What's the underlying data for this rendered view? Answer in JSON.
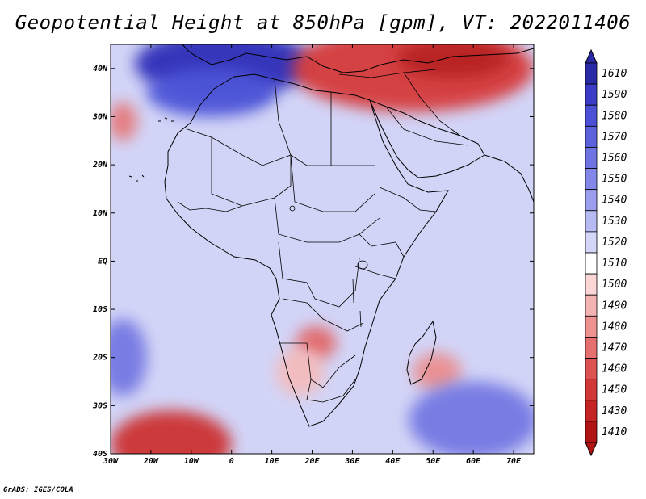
{
  "title": "Geopotential Height at 850hPa [gpm], VT: 2022011406",
  "credit": "GrADS: IGES/COLA",
  "map": {
    "region": "Africa",
    "lon_range": [
      -30,
      75
    ],
    "lat_range": [
      -40,
      45
    ],
    "lat_labels": [
      {
        "lat": 40,
        "text": "40N"
      },
      {
        "lat": 30,
        "text": "30N"
      },
      {
        "lat": 20,
        "text": "20N"
      },
      {
        "lat": 10,
        "text": "10N"
      },
      {
        "lat": 0,
        "text": "EQ"
      },
      {
        "lat": -10,
        "text": "10S"
      },
      {
        "lat": -20,
        "text": "20S"
      },
      {
        "lat": -30,
        "text": "30S"
      },
      {
        "lat": -40,
        "text": "40S"
      }
    ],
    "lon_labels": [
      {
        "lon": -30,
        "text": "30W"
      },
      {
        "lon": -20,
        "text": "20W"
      },
      {
        "lon": -10,
        "text": "10W"
      },
      {
        "lon": 0,
        "text": "0"
      },
      {
        "lon": 10,
        "text": "10E"
      },
      {
        "lon": 20,
        "text": "20E"
      },
      {
        "lon": 30,
        "text": "30E"
      },
      {
        "lon": 40,
        "text": "40E"
      },
      {
        "lon": 50,
        "text": "50E"
      },
      {
        "lon": 60,
        "text": "60E"
      },
      {
        "lon": 70,
        "text": "70E"
      }
    ],
    "features": [
      {
        "name": "high-north-africa-mediterranean",
        "lon": -2,
        "lat": 41,
        "rx": 22,
        "ry": 7,
        "level": 1605,
        "color": "#2d2eb8"
      },
      {
        "name": "high-northwest-sahara",
        "lon": -5,
        "lat": 35,
        "rx": 16,
        "ry": 5,
        "level": 1580,
        "color": "#4d55d8"
      },
      {
        "name": "low-middle-east",
        "lon": 45,
        "lat": 40,
        "rx": 30,
        "ry": 9,
        "level": 1450,
        "color": "#d63a3a"
      },
      {
        "name": "low-middle-east-core",
        "lon": 55,
        "lat": 42,
        "rx": 14,
        "ry": 4,
        "level": 1420,
        "color": "#b82020"
      },
      {
        "name": "low-atlantic-30N",
        "lon": -27,
        "lat": 29,
        "rx": 3.5,
        "ry": 4,
        "level": 1490,
        "color": "#e67878"
      },
      {
        "name": "low-zambia",
        "lon": 21,
        "lat": -17,
        "rx": 5,
        "ry": 3.5,
        "level": 1480,
        "color": "#e26666"
      },
      {
        "name": "low-kalahari",
        "lon": 17,
        "lat": -23,
        "rx": 6,
        "ry": 5,
        "level": 1500,
        "color": "#f4bcbc"
      },
      {
        "name": "low-madagascar-southeast",
        "lon": 51,
        "lat": -23,
        "rx": 6,
        "ry": 4,
        "level": 1490,
        "color": "#ea8e8e"
      },
      {
        "name": "low-south-atlantic",
        "lon": -15,
        "lat": -38,
        "rx": 15,
        "ry": 7,
        "level": 1440,
        "color": "#cc3232"
      },
      {
        "name": "high-southeast-indian-ocean",
        "lon": 60,
        "lat": -33,
        "rx": 16,
        "ry": 8,
        "level": 1560,
        "color": "#7478e2"
      },
      {
        "name": "high-southwest-atlantic",
        "lon": -27,
        "lat": -20,
        "rx": 6,
        "ry": 8,
        "level": 1560,
        "color": "#7478e2"
      }
    ]
  },
  "colorbar": {
    "levels": [
      "1610",
      "1590",
      "1580",
      "1570",
      "1560",
      "1550",
      "1540",
      "1530",
      "1520",
      "1510",
      "1500",
      "1490",
      "1480",
      "1470",
      "1460",
      "1450",
      "1430",
      "1410"
    ],
    "colors": [
      "#2a2aa6",
      "#3a3cc8",
      "#4c50d6",
      "#5c62dc",
      "#6e74e2",
      "#8388e8",
      "#9a9eed",
      "#b7baf3",
      "#d4d6f8",
      "#ffffff",
      "#fbd6d6",
      "#f4b4b4",
      "#ee9292",
      "#e67070",
      "#dd5252",
      "#d23838",
      "#c42424",
      "#b01414"
    ]
  }
}
